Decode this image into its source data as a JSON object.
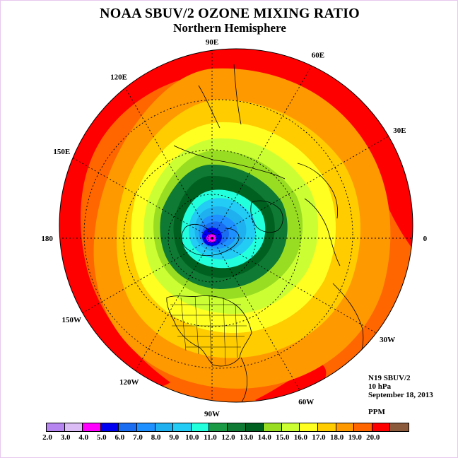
{
  "title": "NOAA SBUV/2 OZONE MIXING RATIO",
  "subtitle": "Northern Hemisphere",
  "info": {
    "instrument": "N19 SBUV/2",
    "level": "10 hPa",
    "date": "September 18, 2013",
    "units": "PPM"
  },
  "longitude_labels": [
    {
      "text": "90E",
      "lon": 90
    },
    {
      "text": "60E",
      "lon": 60
    },
    {
      "text": "30E",
      "lon": 30
    },
    {
      "text": "0",
      "lon": 0
    },
    {
      "text": "30W",
      "lon": -30
    },
    {
      "text": "60W",
      "lon": -60
    },
    {
      "text": "90W",
      "lon": -90
    },
    {
      "text": "120W",
      "lon": -120
    },
    {
      "text": "150W",
      "lon": -150
    },
    {
      "text": "180",
      "lon": 180
    },
    {
      "text": "150E",
      "lon": 150
    },
    {
      "text": "120E",
      "lon": 120
    }
  ],
  "colorbar": {
    "ticks": [
      "2.0",
      "3.0",
      "4.0",
      "5.0",
      "6.0",
      "7.0",
      "8.0",
      "9.0",
      "10.0",
      "11.0",
      "12.0",
      "13.0",
      "14.0",
      "15.0",
      "16.0",
      "17.0",
      "18.0",
      "19.0",
      "20.0"
    ],
    "colors": [
      "#b785f0",
      "#dcbcf5",
      "#ff00ff",
      "#0000f0",
      "#1a6cf0",
      "#1e90ff",
      "#1fb0f0",
      "#22ccf5",
      "#22ffdd",
      "#1a9a44",
      "#0e7a33",
      "#006020",
      "#99dd22",
      "#ccff33",
      "#ffff22",
      "#ffcc00",
      "#ff9900",
      "#ff6600",
      "#ff0000",
      "#8b5a3c"
    ]
  },
  "map_colors": {
    "band_16": "#ff9900",
    "band_17": "#ff6600",
    "band_18": "#ff0000",
    "band_15": "#ffcc00",
    "band_14": "#ffff22",
    "band_13": "#ccff33",
    "band_12": "#99dd22",
    "band_11": "#0e7a33",
    "band_10": "#006020",
    "band_9": "#22ffdd",
    "band_8": "#22ccf5",
    "band_7": "#1fb0f0",
    "band_6": "#1e90ff",
    "band_5": "#1a6cf0",
    "band_4": "#0000f0",
    "band_3": "#ff00ff"
  }
}
